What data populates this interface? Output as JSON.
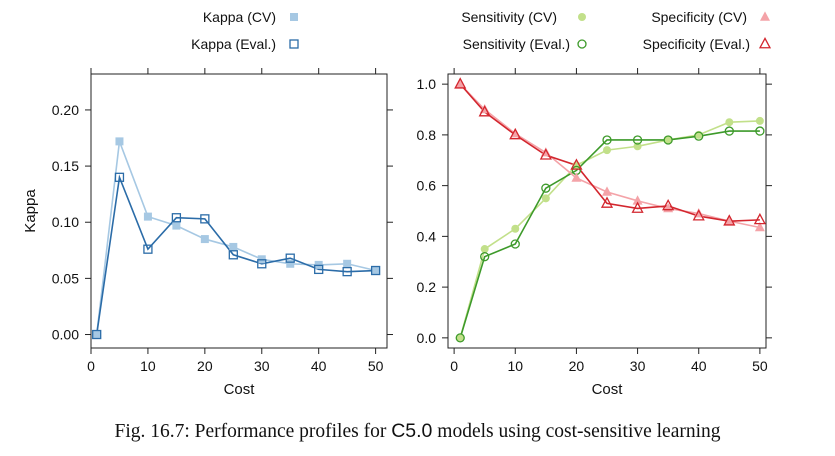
{
  "caption": {
    "prefix": "Fig. 16.7: Performance profiles for ",
    "code": "C5.0",
    "suffix": " models using cost-sensitive learning"
  },
  "colors": {
    "kappa_cv": "#a6c8e3",
    "kappa_eval": "#2b6ca8",
    "sens_cv": "#c2e08a",
    "sens_eval": "#3d9a2a",
    "spec_cv": "#f4a3a8",
    "spec_eval": "#d3262e"
  },
  "chart_data": [
    {
      "type": "line",
      "xlabel": "Cost",
      "ylabel": "Kappa",
      "xlim": [
        0,
        52
      ],
      "ylim": [
        -0.012,
        0.232
      ],
      "xticks": [
        0,
        10,
        20,
        30,
        40,
        50
      ],
      "yticks": [
        0.0,
        0.05,
        0.1,
        0.15,
        0.2
      ],
      "ytick_labels": [
        "0.00",
        "0.05",
        "0.10",
        "0.15",
        "0.20"
      ],
      "x": [
        1,
        5,
        10,
        15,
        20,
        25,
        30,
        35,
        40,
        45,
        50
      ],
      "legend_position": "top",
      "series": [
        {
          "name": "Kappa (CV)",
          "marker": "square-filled",
          "color": "#a6c8e3",
          "values": [
            0.0,
            0.172,
            0.105,
            0.097,
            0.085,
            0.078,
            0.067,
            0.063,
            0.062,
            0.063,
            0.057
          ]
        },
        {
          "name": "Kappa (Eval.)",
          "marker": "square-open",
          "color": "#2b6ca8",
          "values": [
            0.0,
            0.14,
            0.076,
            0.104,
            0.103,
            0.071,
            0.063,
            0.068,
            0.058,
            0.056,
            0.057
          ]
        }
      ]
    },
    {
      "type": "line",
      "xlabel": "Cost",
      "ylabel": "",
      "xlim": [
        -1,
        51
      ],
      "ylim": [
        -0.04,
        1.04
      ],
      "xticks": [
        0,
        10,
        20,
        30,
        40,
        50
      ],
      "yticks": [
        0.0,
        0.2,
        0.4,
        0.6,
        0.8,
        1.0
      ],
      "ytick_labels": [
        "0.0",
        "0.2",
        "0.4",
        "0.6",
        "0.8",
        "1.0"
      ],
      "x": [
        1,
        5,
        10,
        15,
        20,
        25,
        30,
        35,
        40,
        45,
        50
      ],
      "legend_position": "top",
      "series": [
        {
          "name": "Sensitivity (CV)",
          "marker": "circle-filled",
          "color": "#c2e08a",
          "values": [
            0.0,
            0.35,
            0.43,
            0.55,
            0.68,
            0.74,
            0.755,
            0.78,
            0.8,
            0.85,
            0.855
          ]
        },
        {
          "name": "Sensitivity (Eval.)",
          "marker": "circle-open",
          "color": "#3d9a2a",
          "values": [
            0.0,
            0.32,
            0.37,
            0.59,
            0.66,
            0.78,
            0.78,
            0.78,
            0.795,
            0.815,
            0.815
          ]
        },
        {
          "name": "Specificity (CV)",
          "marker": "triangle-filled",
          "color": "#f4a3a8",
          "values": [
            1.0,
            0.9,
            0.805,
            0.73,
            0.63,
            0.575,
            0.54,
            0.51,
            0.49,
            0.46,
            0.435
          ]
        },
        {
          "name": "Specificity (Eval.)",
          "marker": "triangle-open",
          "color": "#d3262e",
          "values": [
            1.0,
            0.89,
            0.8,
            0.72,
            0.68,
            0.53,
            0.51,
            0.52,
            0.48,
            0.46,
            0.465
          ]
        }
      ]
    }
  ]
}
